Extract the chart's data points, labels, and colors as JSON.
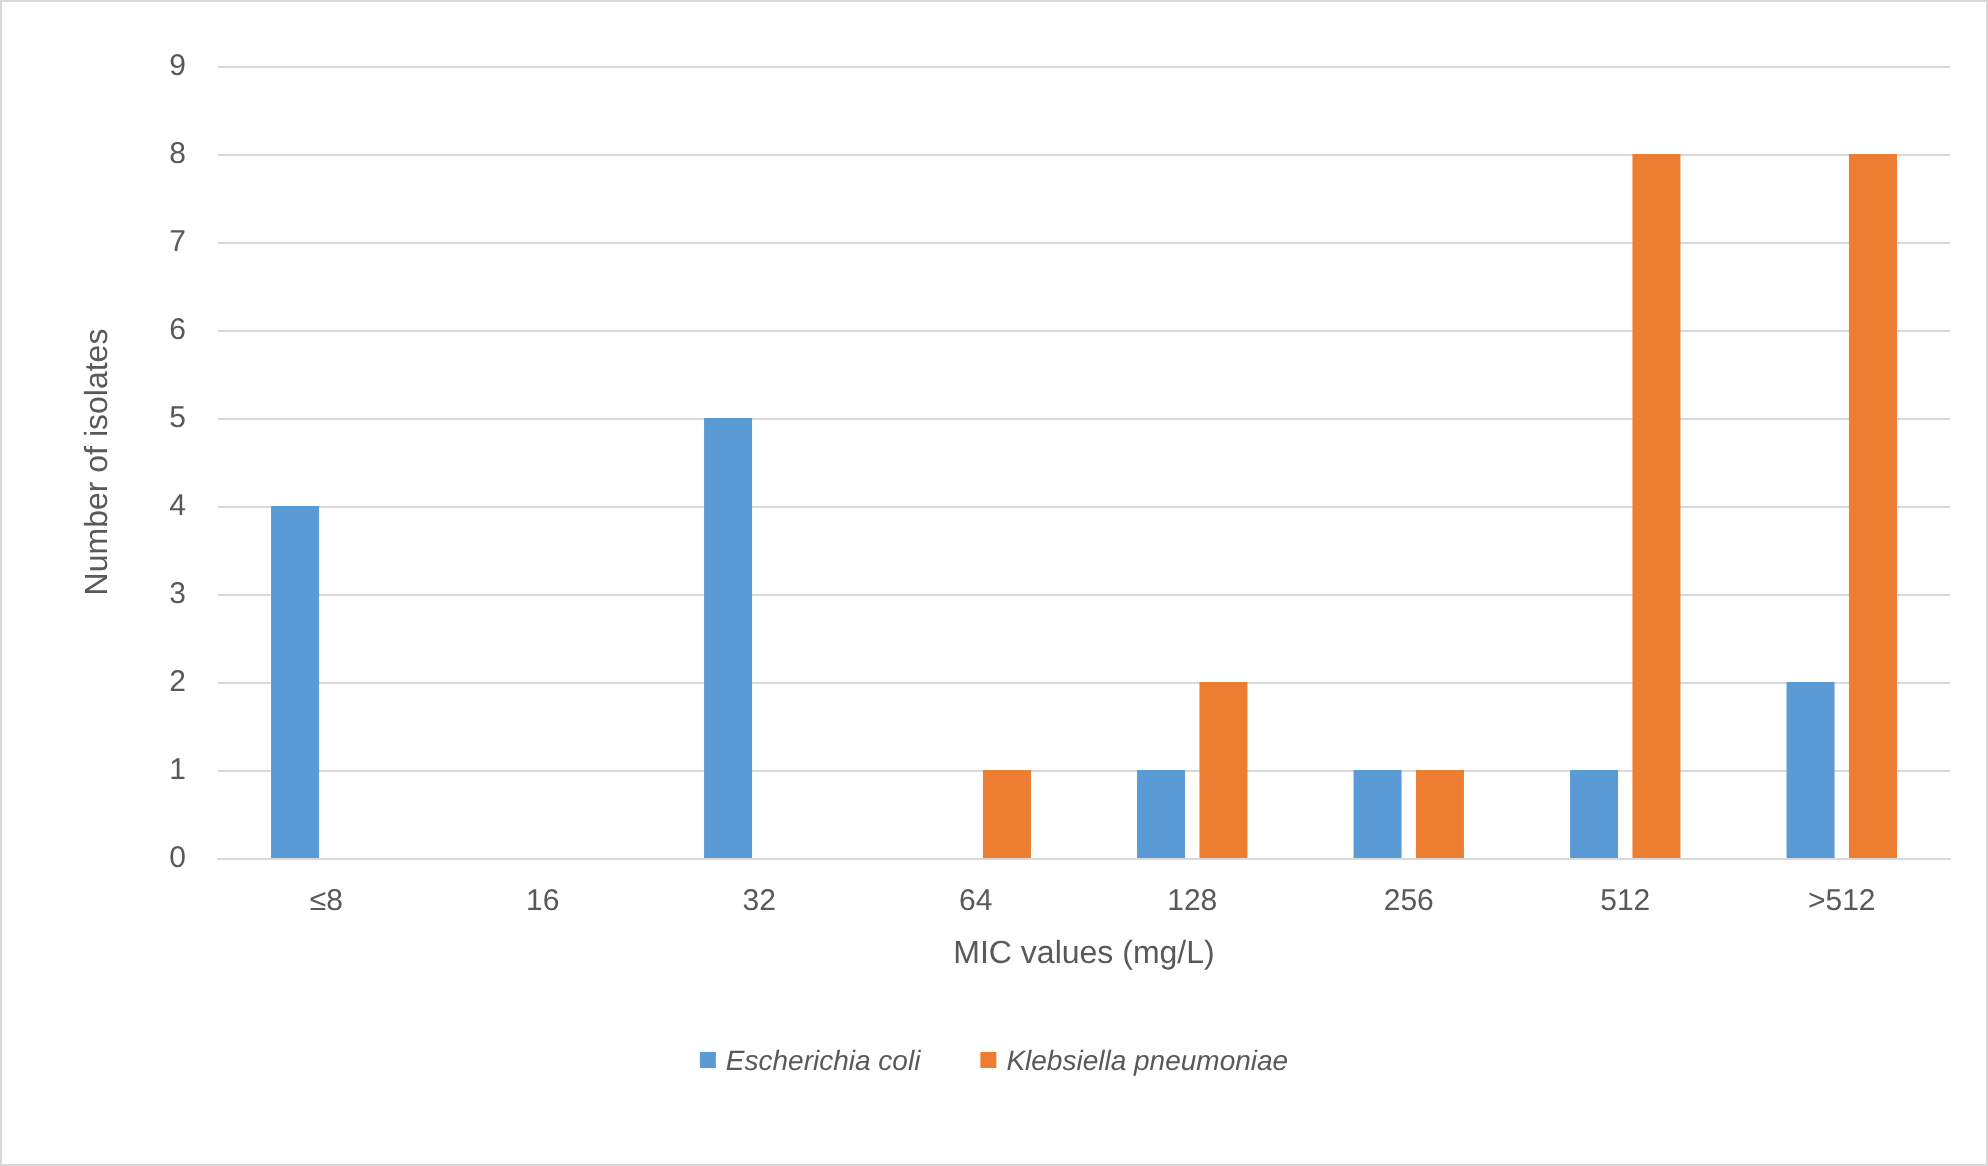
{
  "chart_data": {
    "type": "bar",
    "xlabel": "MIC values (mg/L)",
    "ylabel": "Number of isolates",
    "categories": [
      "≤8",
      "16",
      "32",
      "64",
      "128",
      "256",
      "512",
      ">512"
    ],
    "series": [
      {
        "name": "Escherichia coli",
        "color": "#5b9bd5",
        "values": [
          4,
          0,
          5,
          0,
          1,
          1,
          1,
          2
        ]
      },
      {
        "name": "Klebsiella pneumoniae",
        "color": "#ed7d31",
        "values": [
          0,
          0,
          0,
          1,
          2,
          1,
          8,
          8
        ]
      }
    ],
    "ylim": [
      0,
      9
    ],
    "yticks": [
      0,
      1,
      2,
      3,
      4,
      5,
      6,
      7,
      8,
      9
    ],
    "grid": "y",
    "legend": "bottom"
  }
}
